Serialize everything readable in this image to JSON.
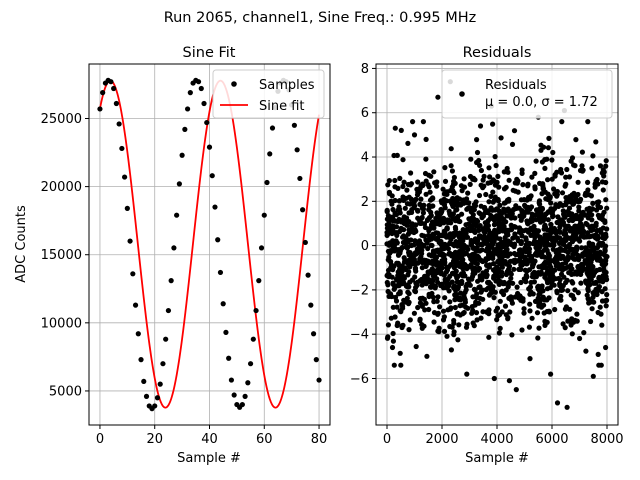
{
  "figure": {
    "suptitle": "Run 2065, channel1, Sine Freq.: 0.995 MHz"
  },
  "colors": {
    "samples": "#000000",
    "fit": "#ff0000",
    "grid": "#b0b0b0",
    "legend_border": "#cccccc"
  },
  "chart_data": [
    {
      "type": "line",
      "title": "Sine Fit",
      "xlabel": "Sample #",
      "ylabel": "ADC Counts",
      "xlim": [
        -4,
        84
      ],
      "ylim": [
        2500,
        29000
      ],
      "xticks": [
        0,
        20,
        40,
        60,
        80
      ],
      "yticks": [
        5000,
        10000,
        15000,
        20000,
        25000
      ],
      "grid": true,
      "legend_position": "top-right",
      "fit": {
        "name": "Sine fit",
        "offset": 15775,
        "amplitude": 12000,
        "period_samples": 40.2,
        "phase_deg": 56
      },
      "series": [
        {
          "name": "Samples",
          "style": "markers",
          "x": [
            0,
            1,
            2,
            3,
            4,
            5,
            6,
            7,
            8,
            9,
            10,
            11,
            12,
            13,
            14,
            15,
            16,
            17,
            18,
            19,
            20,
            21,
            22,
            23,
            24,
            25,
            26,
            27,
            28,
            29,
            30,
            31,
            32,
            33,
            34,
            35,
            36,
            37,
            38,
            39,
            40,
            41,
            42,
            43,
            44,
            45,
            46,
            47,
            48,
            49,
            50,
            51,
            52,
            53,
            54,
            55,
            56,
            57,
            58,
            59,
            60,
            61,
            62,
            63,
            64,
            65,
            66,
            67,
            68,
            69,
            70,
            71,
            72,
            73,
            74,
            75,
            76,
            77,
            78,
            79,
            80
          ],
          "y": [
            25700,
            26900,
            27600,
            27800,
            27700,
            27200,
            26100,
            24600,
            22800,
            20700,
            18400,
            16000,
            13600,
            11300,
            9200,
            7300,
            5700,
            4600,
            3900,
            3700,
            3900,
            4500,
            5500,
            7000,
            8800,
            10900,
            13100,
            15500,
            17900,
            20200,
            22300,
            24200,
            25700,
            26900,
            27600,
            27800,
            27700,
            27200,
            26100,
            24700,
            22900,
            20800,
            18500,
            16100,
            13700,
            11400,
            9300,
            7400,
            5800,
            4700,
            4000,
            3800,
            4000,
            4600,
            5600,
            7000,
            8800,
            10900,
            13100,
            15500,
            17900,
            20300,
            22400,
            24300,
            25800,
            27000,
            27600,
            27800,
            27700,
            27100,
            26000,
            24500,
            22700,
            20600,
            18300,
            15900,
            13500,
            11300,
            9200,
            7300,
            5800
          ]
        },
        {
          "name": "Sine fit",
          "style": "line",
          "x": [],
          "y": []
        }
      ]
    },
    {
      "type": "scatter",
      "title": "Residuals",
      "xlabel": "Sample #",
      "ylabel": "",
      "xlim": [
        -400,
        8400
      ],
      "ylim": [
        -8.1,
        8.2
      ],
      "xticks": [
        0,
        2000,
        4000,
        6000,
        8000
      ],
      "yticks": [
        -6,
        -4,
        -2,
        0,
        2,
        4,
        6,
        8
      ],
      "grid": true,
      "legend_position": "top-right",
      "stats": {
        "mean": 0.0,
        "sigma": 1.72,
        "n_points": 8000
      },
      "series": [
        {
          "name": "Residuals",
          "style": "markers",
          "outliers": [
            [
              2300,
              7.4
            ],
            [
              1850,
              6.7
            ],
            [
              3800,
              6.3
            ],
            [
              300,
              5.3
            ],
            [
              520,
              5.2
            ],
            [
              3900,
              -6.0
            ],
            [
              4700,
              -6.5
            ],
            [
              6200,
              -7.1
            ],
            [
              6550,
              -7.3
            ],
            [
              5950,
              -5.8
            ],
            [
              2900,
              -5.8
            ],
            [
              7500,
              -5.9
            ],
            [
              4450,
              -6.1
            ],
            [
              500,
              -5.4
            ],
            [
              200,
              -4.6
            ],
            [
              7950,
              -4.6
            ],
            [
              1000,
              5.0
            ],
            [
              6450,
              6.1
            ],
            [
              5500,
              5.8
            ],
            [
              7300,
              5.6
            ],
            [
              1450,
              -5.0
            ],
            [
              5200,
              -5.1
            ],
            [
              3400,
              5.4
            ],
            [
              7700,
              -5.4
            ]
          ]
        }
      ]
    }
  ],
  "legends": {
    "sine": {
      "samples_label": "Samples",
      "fit_label": "Sine fit"
    },
    "residuals": {
      "label": "Residuals",
      "stats_line": "μ = 0.0, σ = 1.72"
    }
  }
}
